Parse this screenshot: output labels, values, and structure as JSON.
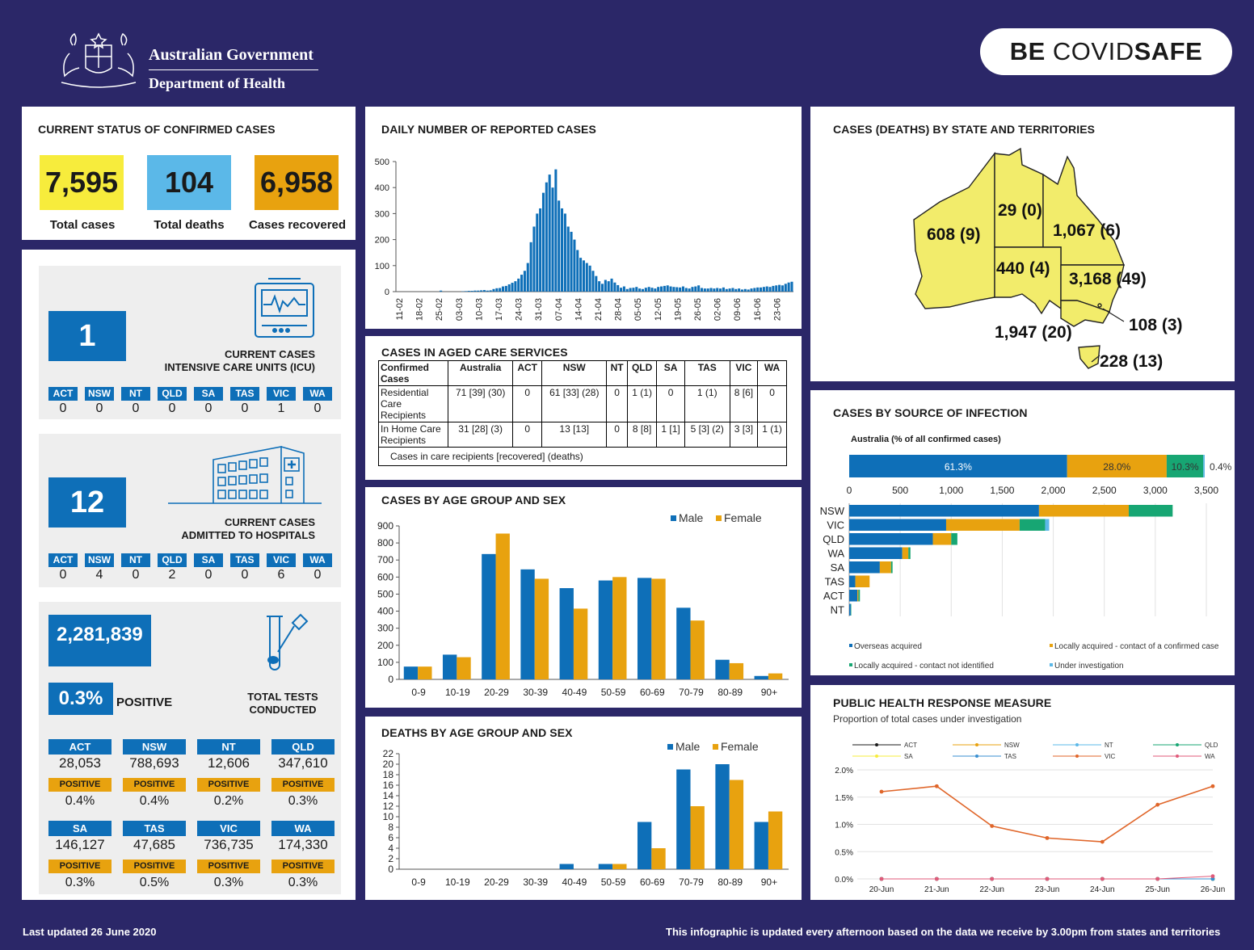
{
  "header": {
    "gov_line1": "Australian Government",
    "gov_line2": "Department of Health",
    "badge_be": "BE ",
    "badge_covid": "COVID",
    "badge_safe": "SAFE"
  },
  "status": {
    "title": "CURRENT STATUS OF CONFIRMED CASES",
    "total_cases": "7,595",
    "total_cases_label": "Total cases",
    "total_deaths": "104",
    "total_deaths_label": "Total deaths",
    "recovered": "6,958",
    "recovered_label": "Cases recovered",
    "colors": {
      "cases": "#f7ec3c",
      "deaths": "#5bb8e8",
      "recovered": "#e8a20f"
    }
  },
  "icu": {
    "value": "1",
    "caption1": "CURRENT CASES",
    "caption2": "INTENSIVE CARE UNITS (ICU)",
    "states": [
      {
        "s": "ACT",
        "v": "0"
      },
      {
        "s": "NSW",
        "v": "0"
      },
      {
        "s": "NT",
        "v": "0"
      },
      {
        "s": "QLD",
        "v": "0"
      },
      {
        "s": "SA",
        "v": "0"
      },
      {
        "s": "TAS",
        "v": "0"
      },
      {
        "s": "VIC",
        "v": "1"
      },
      {
        "s": "WA",
        "v": "0"
      }
    ]
  },
  "hospital": {
    "value": "12",
    "caption1": "CURRENT CASES",
    "caption2": "ADMITTED TO HOSPITALS",
    "states": [
      {
        "s": "ACT",
        "v": "0"
      },
      {
        "s": "NSW",
        "v": "4"
      },
      {
        "s": "NT",
        "v": "0"
      },
      {
        "s": "QLD",
        "v": "2"
      },
      {
        "s": "SA",
        "v": "0"
      },
      {
        "s": "TAS",
        "v": "0"
      },
      {
        "s": "VIC",
        "v": "6"
      },
      {
        "s": "WA",
        "v": "0"
      }
    ]
  },
  "tests": {
    "total": "2,281,839",
    "positive_rate": "0.3%",
    "positive_word": "POSITIVE",
    "caption1": "TOTAL TESTS",
    "caption2": "CONDUCTED",
    "positive_label": "POSITIVE",
    "states": [
      {
        "s": "ACT",
        "tests": "28,053",
        "pos": "0.4%"
      },
      {
        "s": "NSW",
        "tests": "788,693",
        "pos": "0.4%"
      },
      {
        "s": "NT",
        "tests": "12,606",
        "pos": "0.2%"
      },
      {
        "s": "QLD",
        "tests": "347,610",
        "pos": "0.3%"
      },
      {
        "s": "SA",
        "tests": "146,127",
        "pos": "0.3%"
      },
      {
        "s": "TAS",
        "tests": "47,685",
        "pos": "0.5%"
      },
      {
        "s": "VIC",
        "tests": "736,735",
        "pos": "0.3%"
      },
      {
        "s": "WA",
        "tests": "174,330",
        "pos": "0.3%"
      }
    ]
  },
  "aged": {
    "title": "CASES IN AGED CARE SERVICES",
    "headers": [
      "Confirmed Cases",
      "Australia",
      "ACT",
      "NSW",
      "NT",
      "QLD",
      "SA",
      "TAS",
      "VIC",
      "WA"
    ],
    "rows": [
      [
        "Residential Care Recipients",
        "71 [39] (30)",
        "0",
        "61 [33] (28)",
        "0",
        "1 (1)",
        "0",
        "1 (1)",
        "8 [6]",
        "0"
      ],
      [
        "In Home Care Recipients",
        "31 [28] (3)",
        "0",
        "13 [13]",
        "0",
        "8 [8]",
        "1 [1]",
        "5 [3] (2)",
        "3 [3]",
        "1 (1)"
      ]
    ],
    "note": "Cases in care recipients [recovered] (deaths)"
  },
  "state_map": {
    "title": "CASES (DEATHS) BY STATE AND TERRITORIES",
    "labels": {
      "WA": "608 (9)",
      "NT": "29 (0)",
      "QLD": "1,067 (6)",
      "SA": "440 (4)",
      "NSW": "3,168 (49)",
      "ACT": "108 (3)",
      "VIC": "1,947 (20)",
      "TAS": "228 (13)"
    },
    "fill": "#f2ec6b"
  },
  "footer": {
    "left": "Last updated 26 June 2020",
    "right": "This infographic is updated every afternoon based on the data we receive by 3.00pm from states and territories"
  },
  "chart_data": [
    {
      "id": "daily",
      "type": "bar",
      "title": "DAILY NUMBER OF REPORTED CASES",
      "ylim": [
        0,
        500
      ],
      "yticks": [
        0,
        100,
        200,
        300,
        400,
        500
      ],
      "xticks": [
        "11-02",
        "18-02",
        "25-02",
        "03-03",
        "10-03",
        "17-03",
        "24-03",
        "31-03",
        "07-04",
        "14-04",
        "21-04",
        "28-04",
        "05-05",
        "12-05",
        "19-05",
        "26-05",
        "02-06",
        "09-06",
        "16-06",
        "23-06"
      ],
      "values": [
        0,
        0,
        0,
        0,
        0,
        0,
        0,
        0,
        0,
        0,
        0,
        0,
        0,
        0,
        4,
        0,
        0,
        0,
        0,
        0,
        0,
        1,
        2,
        3,
        3,
        4,
        4,
        5,
        6,
        4,
        5,
        10,
        13,
        14,
        20,
        22,
        28,
        34,
        40,
        50,
        65,
        80,
        110,
        190,
        250,
        300,
        320,
        380,
        420,
        450,
        400,
        470,
        350,
        320,
        300,
        250,
        230,
        200,
        160,
        130,
        120,
        110,
        100,
        80,
        60,
        40,
        30,
        45,
        40,
        50,
        35,
        25,
        15,
        20,
        10,
        14,
        15,
        18,
        12,
        10,
        15,
        18,
        15,
        12,
        18,
        20,
        22,
        24,
        20,
        18,
        17,
        16,
        20,
        14,
        12,
        18,
        20,
        24,
        14,
        12,
        12,
        14,
        12,
        14,
        12,
        16,
        10,
        12,
        14,
        10,
        12,
        8,
        10,
        8,
        12,
        14,
        16,
        16,
        18,
        20,
        18,
        22,
        24,
        26,
        24,
        30,
        35,
        38
      ],
      "color": "#0e6fb8"
    },
    {
      "id": "age_cases",
      "type": "bar",
      "title": "CASES BY AGE GROUP AND SEX",
      "categories": [
        "0-9",
        "10-19",
        "20-29",
        "30-39",
        "40-49",
        "50-59",
        "60-69",
        "70-79",
        "80-89",
        "90+"
      ],
      "series": [
        {
          "name": "Male",
          "color": "#0e6fb8",
          "values": [
            75,
            145,
            735,
            645,
            535,
            580,
            595,
            420,
            115,
            20
          ]
        },
        {
          "name": "Female",
          "color": "#e8a20f",
          "values": [
            75,
            130,
            855,
            590,
            415,
            600,
            590,
            345,
            95,
            35
          ]
        }
      ],
      "ylim": [
        0,
        900
      ],
      "yticks": [
        0,
        100,
        200,
        300,
        400,
        500,
        600,
        700,
        800,
        900
      ]
    },
    {
      "id": "age_deaths",
      "type": "bar",
      "title": "DEATHS BY AGE GROUP AND SEX",
      "categories": [
        "0-9",
        "10-19",
        "20-29",
        "30-39",
        "40-49",
        "50-59",
        "60-69",
        "70-79",
        "80-89",
        "90+"
      ],
      "series": [
        {
          "name": "Male",
          "color": "#0e6fb8",
          "values": [
            0,
            0,
            0,
            0,
            1,
            1,
            9,
            19,
            20,
            9
          ]
        },
        {
          "name": "Female",
          "color": "#e8a20f",
          "values": [
            0,
            0,
            0,
            0,
            0,
            1,
            4,
            12,
            17,
            11
          ]
        }
      ],
      "ylim": [
        0,
        22
      ],
      "yticks": [
        0,
        2,
        4,
        6,
        8,
        10,
        12,
        14,
        16,
        18,
        20,
        22
      ]
    },
    {
      "id": "source",
      "type": "bar",
      "title": "CASES BY SOURCE OF INFECTION",
      "subtitle": "Australia (% of all confirmed cases)",
      "australia": [
        {
          "label": "61.3%",
          "value": 61.3,
          "color": "#0e6fb8"
        },
        {
          "label": "28.0%",
          "value": 28.0,
          "color": "#e8a20f"
        },
        {
          "label": "10.3%",
          "value": 10.3,
          "color": "#17a673"
        },
        {
          "label": "0.4%",
          "value": 0.4,
          "color": "#5bb8e8"
        }
      ],
      "xlim": [
        0,
        3500
      ],
      "xticks": [
        "0",
        "500",
        "1,000",
        "1,500",
        "2,000",
        "2,500",
        "3,000",
        "3,500"
      ],
      "categories": [
        "NSW",
        "VIC",
        "QLD",
        "WA",
        "SA",
        "TAS",
        "ACT",
        "NT"
      ],
      "series": [
        {
          "name": "Overseas acquired",
          "color": "#0e6fb8",
          "values": [
            1860,
            950,
            820,
            520,
            300,
            60,
            80,
            15
          ]
        },
        {
          "name": "Locally acquired - contact of a confirmed case",
          "color": "#e8a20f",
          "values": [
            880,
            720,
            180,
            60,
            110,
            140,
            10,
            0
          ]
        },
        {
          "name": "Locally acquired - contact not identified",
          "color": "#17a673",
          "values": [
            430,
            250,
            60,
            20,
            15,
            0,
            15,
            5
          ]
        },
        {
          "name": "Under investigation",
          "color": "#5bb8e8",
          "values": [
            0,
            40,
            0,
            0,
            0,
            0,
            0,
            0
          ]
        }
      ]
    },
    {
      "id": "investigation",
      "type": "line",
      "title": "PUBLIC HEALTH RESPONSE MEASURE",
      "subtitle": "Proportion of total cases under investigation",
      "categories": [
        "20-Jun",
        "21-Jun",
        "22-Jun",
        "23-Jun",
        "24-Jun",
        "25-Jun",
        "26-Jun"
      ],
      "yticks": [
        "0.0%",
        "0.5%",
        "1.0%",
        "1.5%",
        "2.0%"
      ],
      "ylim": [
        0,
        2.0
      ],
      "series": [
        {
          "name": "ACT",
          "color": "#1a1a1a",
          "values": [
            0,
            0,
            0,
            0,
            0,
            0,
            0
          ]
        },
        {
          "name": "NSW",
          "color": "#e8a20f",
          "values": [
            0,
            0,
            0,
            0,
            0,
            0,
            0
          ]
        },
        {
          "name": "NT",
          "color": "#5bb8e8",
          "values": [
            0,
            0,
            0,
            0,
            0,
            0,
            0
          ]
        },
        {
          "name": "QLD",
          "color": "#17a673",
          "values": [
            0,
            0,
            0,
            0,
            0,
            0,
            0
          ]
        },
        {
          "name": "SA",
          "color": "#f7ec3c",
          "values": [
            0,
            0,
            0,
            0,
            0,
            0,
            0
          ]
        },
        {
          "name": "TAS",
          "color": "#3a8fd0",
          "values": [
            0,
            0,
            0,
            0,
            0,
            0,
            0
          ]
        },
        {
          "name": "VIC",
          "color": "#e0662a",
          "values": [
            1.6,
            1.7,
            0.97,
            0.75,
            0.68,
            1.36,
            1.7
          ]
        },
        {
          "name": "WA",
          "color": "#e05a7a",
          "values": [
            0,
            0,
            0,
            0,
            0,
            0,
            0.05
          ]
        }
      ]
    }
  ]
}
